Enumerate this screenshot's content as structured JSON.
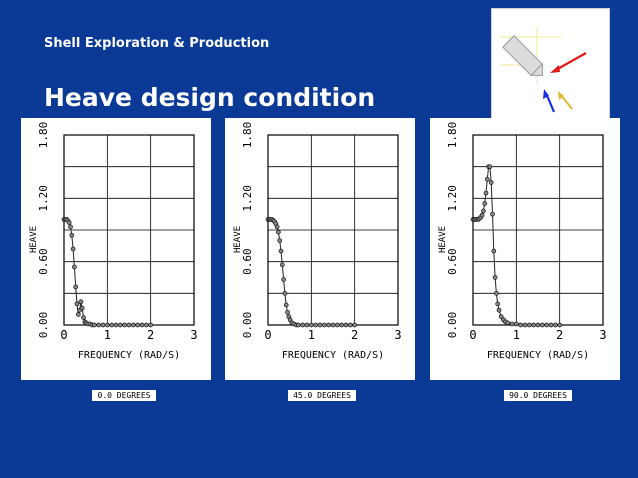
{
  "header": {
    "subtitle": "Shell Exploration & Production",
    "title": "Heave design condition"
  },
  "inset": {
    "icon": "wave-heading-diagram-icon"
  },
  "chart_data": [
    {
      "type": "scatter",
      "title": "",
      "xlabel": "FREQUENCY (RAD/S)",
      "ylabel": "HEAVE",
      "xlim": [
        0,
        3
      ],
      "ylim": [
        0,
        1.8
      ],
      "xticks": [
        "0",
        "1",
        "2",
        "3"
      ],
      "yticks": [
        "0.00",
        "0.60",
        "1.20",
        "1.80"
      ],
      "grid": true,
      "caption": "0.0 DEGREES",
      "series": [
        {
          "x": [
            0.0,
            0.03,
            0.06,
            0.09,
            0.12,
            0.15,
            0.18,
            0.21,
            0.24,
            0.27,
            0.3,
            0.33,
            0.36,
            0.39,
            0.42,
            0.45,
            0.48,
            0.51,
            0.55,
            0.6,
            0.65,
            0.7,
            0.8,
            0.9,
            1.0,
            1.1,
            1.2,
            1.3,
            1.4,
            1.5,
            1.6,
            1.7,
            1.8,
            1.9,
            2.0
          ],
          "y": [
            1.0,
            1.0,
            1.0,
            0.99,
            0.97,
            0.93,
            0.85,
            0.72,
            0.55,
            0.36,
            0.2,
            0.1,
            0.14,
            0.22,
            0.16,
            0.07,
            0.03,
            0.02,
            0.01,
            0.01,
            0.0,
            0.0,
            0.0,
            0.0,
            0.0,
            0.0,
            0.0,
            0.0,
            0.0,
            0.0,
            0.0,
            0.0,
            0.0,
            0.0,
            0.0
          ]
        }
      ]
    },
    {
      "type": "scatter",
      "title": "",
      "xlabel": "FREQUENCY (RAD/S)",
      "ylabel": "HEAVE",
      "xlim": [
        0,
        3
      ],
      "ylim": [
        0,
        1.8
      ],
      "xticks": [
        "0",
        "1",
        "2",
        "3"
      ],
      "yticks": [
        "0.00",
        "0.60",
        "1.20",
        "1.80"
      ],
      "grid": true,
      "caption": "45.0 DEGREES",
      "series": [
        {
          "x": [
            0.0,
            0.03,
            0.06,
            0.09,
            0.12,
            0.15,
            0.18,
            0.21,
            0.24,
            0.27,
            0.3,
            0.33,
            0.36,
            0.39,
            0.42,
            0.45,
            0.48,
            0.51,
            0.55,
            0.6,
            0.65,
            0.7,
            0.8,
            0.9,
            1.0,
            1.1,
            1.2,
            1.3,
            1.4,
            1.5,
            1.6,
            1.7,
            1.8,
            1.9,
            2.0
          ],
          "y": [
            1.0,
            1.0,
            1.0,
            1.0,
            0.99,
            0.98,
            0.96,
            0.93,
            0.88,
            0.8,
            0.7,
            0.57,
            0.43,
            0.3,
            0.19,
            0.12,
            0.08,
            0.05,
            0.02,
            0.01,
            0.0,
            0.0,
            0.0,
            0.0,
            0.0,
            0.0,
            0.0,
            0.0,
            0.0,
            0.0,
            0.0,
            0.0,
            0.0,
            0.0,
            0.0
          ]
        }
      ]
    },
    {
      "type": "scatter",
      "title": "",
      "xlabel": "FREQUENCY (RAD/S)",
      "ylabel": "HEAVE",
      "xlim": [
        0,
        3
      ],
      "ylim": [
        0,
        1.8
      ],
      "xticks": [
        "0",
        "1",
        "2",
        "3"
      ],
      "yticks": [
        "0.00",
        "0.60",
        "1.20",
        "1.80"
      ],
      "grid": true,
      "caption": "90.0 DEGREES",
      "series": [
        {
          "x": [
            0.0,
            0.03,
            0.06,
            0.09,
            0.12,
            0.15,
            0.18,
            0.21,
            0.24,
            0.27,
            0.3,
            0.33,
            0.36,
            0.39,
            0.42,
            0.45,
            0.48,
            0.51,
            0.54,
            0.57,
            0.6,
            0.65,
            0.7,
            0.75,
            0.8,
            0.9,
            1.0,
            1.1,
            1.2,
            1.3,
            1.4,
            1.5,
            1.6,
            1.7,
            1.8,
            1.9,
            2.0
          ],
          "y": [
            1.0,
            1.0,
            1.0,
            1.0,
            1.0,
            1.01,
            1.02,
            1.04,
            1.08,
            1.15,
            1.25,
            1.38,
            1.5,
            1.5,
            1.35,
            1.05,
            0.7,
            0.45,
            0.3,
            0.2,
            0.14,
            0.08,
            0.05,
            0.03,
            0.02,
            0.01,
            0.01,
            0.0,
            0.0,
            0.0,
            0.0,
            0.0,
            0.0,
            0.0,
            0.0,
            0.0,
            0.0
          ]
        }
      ]
    }
  ]
}
